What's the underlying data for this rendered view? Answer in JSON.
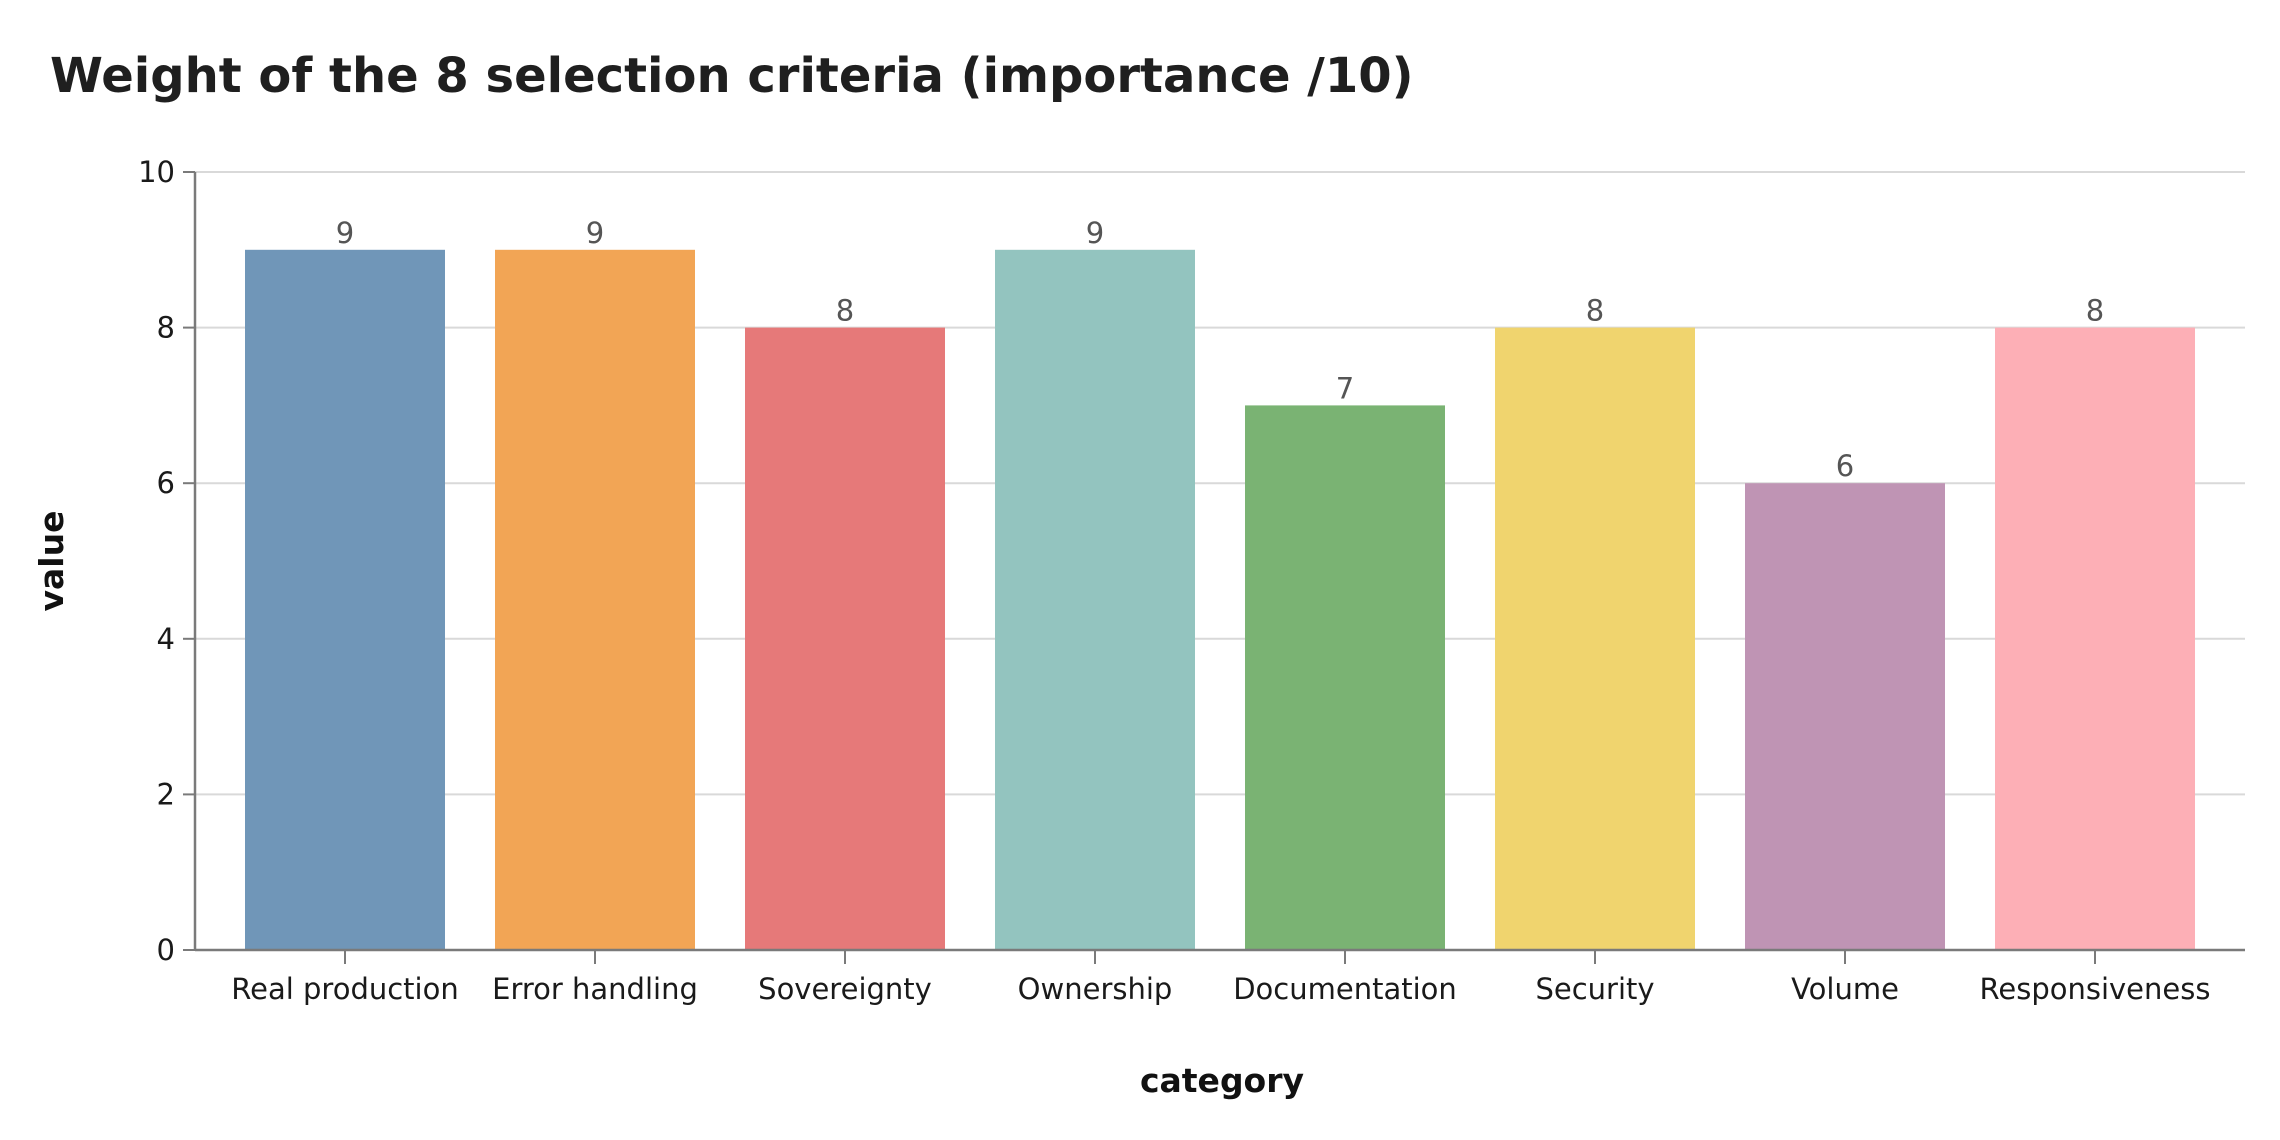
{
  "chart_data": {
    "type": "bar",
    "title": "Weight of the 8 selection criteria (importance /10)",
    "xlabel": "category",
    "ylabel": "value",
    "categories": [
      "Real production",
      "Error handling",
      "Sovereignty",
      "Ownership",
      "Documentation",
      "Security",
      "Volume",
      "Responsiveness"
    ],
    "values": [
      9,
      9,
      8,
      9,
      7,
      8,
      6,
      8
    ],
    "colors": [
      "#7096b8",
      "#f2a555",
      "#e67979",
      "#93c4bf",
      "#7ab373",
      "#f0d46e",
      "#bf94b4",
      "#fdafb6"
    ],
    "ylim": [
      0,
      10
    ],
    "yticks": [
      0,
      2,
      4,
      6,
      8,
      10
    ],
    "grid": true,
    "data_labels": true
  }
}
